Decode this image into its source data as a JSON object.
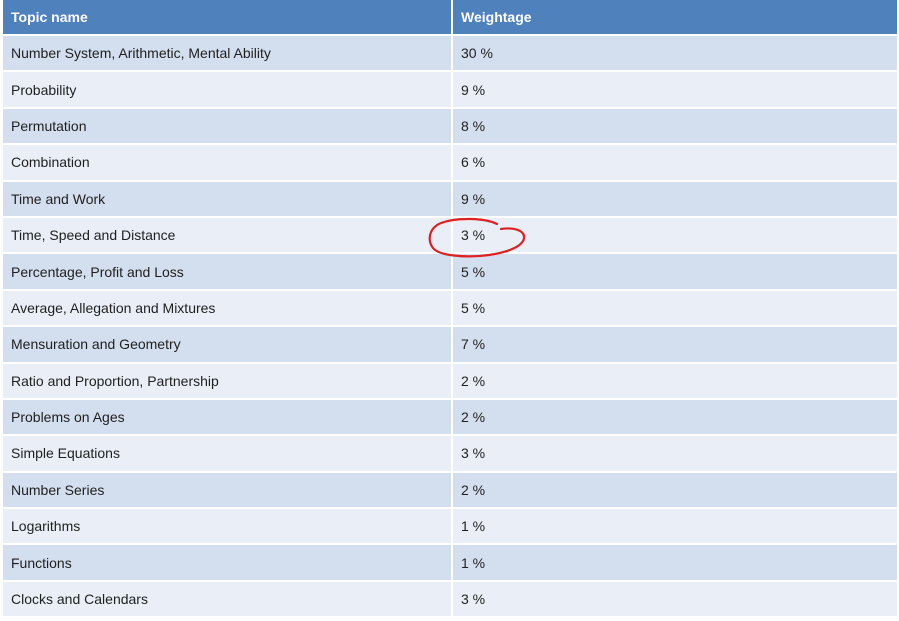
{
  "table": {
    "headers": {
      "topic": "Topic name",
      "weightage": "Weightage"
    },
    "rows": [
      {
        "topic": "Number System, Arithmetic, Mental Ability",
        "weightage": "30 %"
      },
      {
        "topic": "Probability",
        "weightage": "9 %"
      },
      {
        "topic": "Permutation",
        "weightage": "8 %"
      },
      {
        "topic": "Combination",
        "weightage": "6 %"
      },
      {
        "topic": "Time and Work",
        "weightage": "9 %"
      },
      {
        "topic": "Time, Speed and Distance",
        "weightage": "3 %"
      },
      {
        "topic": "Percentage, Profit and Loss",
        "weightage": "5 %"
      },
      {
        "topic": "Average, Allegation and Mixtures",
        "weightage": "5 %"
      },
      {
        "topic": "Mensuration and Geometry",
        "weightage": "7 %"
      },
      {
        "topic": "Ratio and Proportion, Partnership",
        "weightage": "2 %"
      },
      {
        "topic": "Problems on Ages",
        "weightage": "2 %"
      },
      {
        "topic": "Simple Equations",
        "weightage": "3 %"
      },
      {
        "topic": "Number Series",
        "weightage": "2 %"
      },
      {
        "topic": "Logarithms",
        "weightage": "1 %"
      },
      {
        "topic": "Functions",
        "weightage": "1 %"
      },
      {
        "topic": "Clocks and Calendars",
        "weightage": "3 %"
      }
    ]
  },
  "colors": {
    "header_bg": "#4f81bd",
    "row_band_dark": "#d3dfee",
    "row_band_light": "#eaeff7",
    "annotation": "#e02020"
  },
  "annotation": {
    "type": "hand-drawn-circle",
    "highlighted_row": 5
  }
}
